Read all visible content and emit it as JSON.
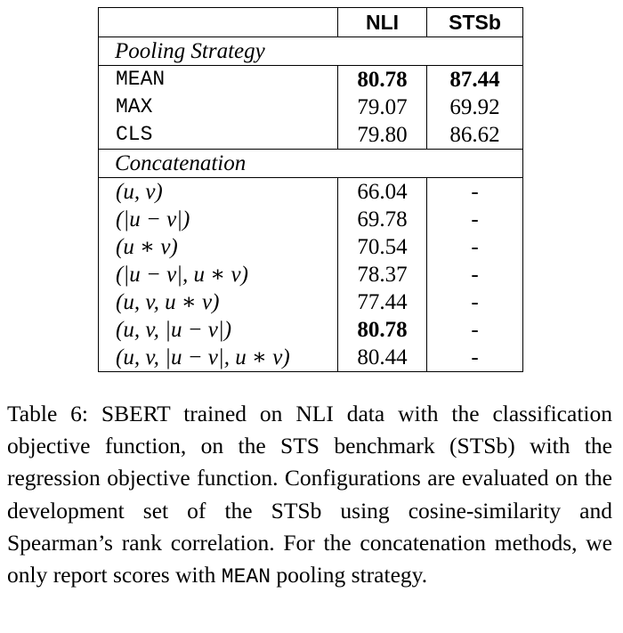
{
  "table": {
    "header": {
      "blank": "",
      "col_nli": "NLI",
      "col_stsb": "STSb"
    },
    "sections": [
      {
        "title": "Pooling Strategy",
        "rows": [
          {
            "method": "MEAN",
            "nli": "80.78",
            "stsb": "87.44",
            "nli_bold": true,
            "stsb_bold": true
          },
          {
            "method": "MAX",
            "nli": "79.07",
            "stsb": "69.92",
            "nli_bold": false,
            "stsb_bold": false
          },
          {
            "method": "CLS",
            "nli": "79.80",
            "stsb": "86.62",
            "nli_bold": false,
            "stsb_bold": false
          }
        ]
      },
      {
        "title": "Concatenation",
        "rows": [
          {
            "method": "(u, v)",
            "nli": "66.04",
            "stsb": "-",
            "nli_bold": false
          },
          {
            "method": "(|u − v|)",
            "nli": "69.78",
            "stsb": "-",
            "nli_bold": false
          },
          {
            "method": "(u ∗ v)",
            "nli": "70.54",
            "stsb": "-",
            "nli_bold": false
          },
          {
            "method": "(|u − v|, u ∗ v)",
            "nli": "78.37",
            "stsb": "-",
            "nli_bold": false
          },
          {
            "method": "(u, v, u ∗ v)",
            "nli": "77.44",
            "stsb": "-",
            "nli_bold": false
          },
          {
            "method": "(u, v, |u − v|)",
            "nli": "80.78",
            "stsb": "-",
            "nli_bold": true
          },
          {
            "method": "(u, v, |u − v|, u ∗ v)",
            "nli": "80.44",
            "stsb": "-",
            "nli_bold": false
          }
        ]
      }
    ]
  },
  "caption": {
    "part1": "Table 6:  SBERT trained on NLI data with the classification objective function, on the STS benchmark (STSb) with the regression objective function.  Configurations are evaluated on the development set of the STSb using cosine-similarity and Spearman’s rank correlation. For the concatenation methods, we only report scores with ",
    "mono": "MEAN",
    "part2": " pooling strategy."
  }
}
